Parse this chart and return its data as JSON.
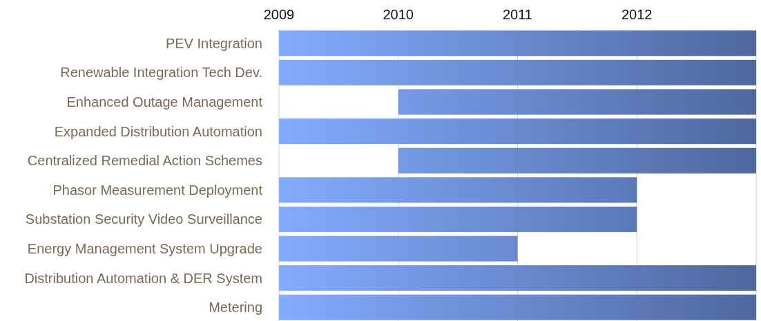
{
  "chart_data": {
    "type": "bar",
    "orientation": "horizontal",
    "categories": [
      "PEV Integration",
      "Renewable Integration Tech Dev.",
      "Enhanced Outage Management",
      "Expanded Distribution Automation",
      "Centralized Remedial Action Schemes",
      "Phasor Measurement Deployment",
      "Substation Security Video Surveillance",
      "Energy Management System Upgrade",
      "Distribution Automation & DER System",
      "Metering"
    ],
    "base": [
      2009,
      2009,
      2010,
      2009,
      2010,
      2009,
      2009,
      2009,
      2009,
      2009
    ],
    "values": [
      4,
      4,
      3,
      4,
      3,
      3,
      3,
      2,
      4,
      4
    ],
    "color": "#5f7cbd",
    "xlim": [
      2009,
      2013
    ],
    "xticks": [
      2009,
      2010,
      2011,
      2012,
      {
        "value": 2013,
        "label": null
      }
    ],
    "grid": "x"
  }
}
